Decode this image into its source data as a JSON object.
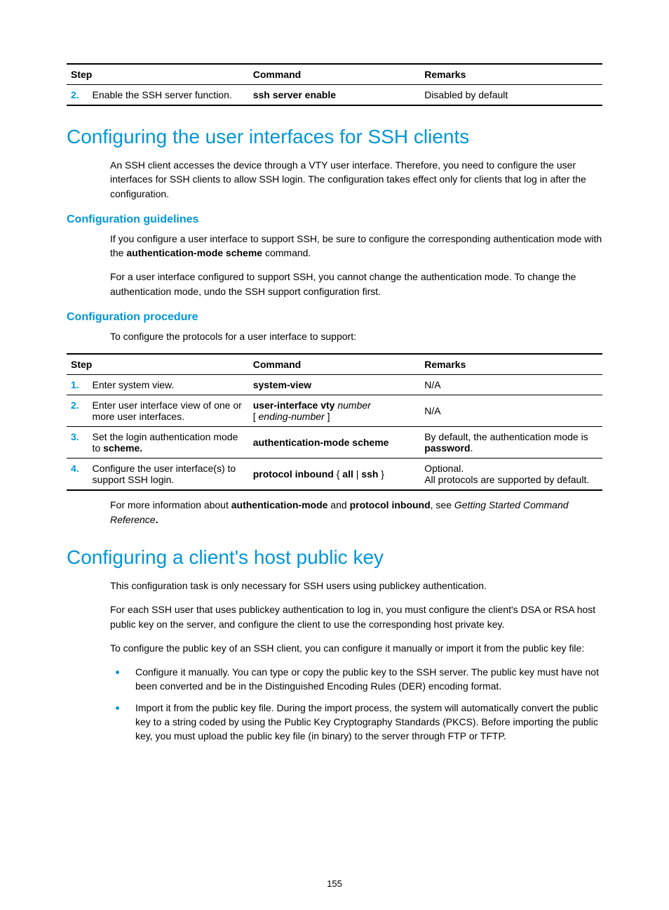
{
  "colors": {
    "accent": "#0096d6",
    "text": "#000000",
    "border": "#000000",
    "background": "#ffffff"
  },
  "typography": {
    "h2_fontsize": 28,
    "h3_fontsize": 16,
    "body_fontsize": 14,
    "table_fontsize": 14
  },
  "table1": {
    "columns": [
      "Step",
      "Command",
      "Remarks"
    ],
    "rows": [
      {
        "num": "2.",
        "step_desc": "Enable the SSH server function.",
        "command_bold": "ssh server enable",
        "remarks": "Disabled by default"
      }
    ]
  },
  "section1": {
    "title": "Configuring the user interfaces for SSH clients",
    "intro": "An SSH client accesses the device through a VTY user interface. Therefore, you need to configure the user interfaces for SSH clients to allow SSH login. The configuration takes effect only for clients that log in after the configuration.",
    "sub1": "Configuration guidelines",
    "guideline1_a": "If you configure a user interface to support SSH, be sure to configure the corresponding authentication mode with the ",
    "guideline1_bold": "authentication-mode scheme",
    "guideline1_b": " command.",
    "guideline2": "For a user interface configured to support SSH, you cannot change the authentication mode. To change the authentication mode, undo the SSH support configuration first.",
    "sub2": "Configuration procedure",
    "proc_intro": "To configure the protocols for a user interface to support:"
  },
  "table2": {
    "columns": [
      "Step",
      "Command",
      "Remarks"
    ],
    "rows": [
      {
        "num": "1.",
        "step_desc": "Enter system view.",
        "cmd_parts": [
          {
            "t": "system-view",
            "b": true
          }
        ],
        "remarks_parts": [
          {
            "t": "N/A"
          }
        ]
      },
      {
        "num": "2.",
        "step_desc": "Enter user interface view of one or more user interfaces.",
        "cmd_parts": [
          {
            "t": "user-interface vty",
            "b": true
          },
          {
            "t": " "
          },
          {
            "t": "number",
            "i": true
          },
          {
            "br": true
          },
          {
            "t": "[ "
          },
          {
            "t": "ending-number",
            "i": true
          },
          {
            "t": " ]"
          }
        ],
        "remarks_parts": [
          {
            "t": "N/A"
          }
        ]
      },
      {
        "num": "3.",
        "step_parts": [
          {
            "t": "Set the login authentication mode to "
          },
          {
            "t": "scheme.",
            "b": true
          }
        ],
        "cmd_parts": [
          {
            "t": "authentication-mode scheme",
            "b": true
          }
        ],
        "remarks_parts": [
          {
            "t": "By default, the authentication mode is "
          },
          {
            "t": "password",
            "b": true
          },
          {
            "t": "."
          }
        ]
      },
      {
        "num": "4.",
        "step_desc": "Configure the user interface(s) to support SSH login.",
        "cmd_parts": [
          {
            "t": "protocol inbound",
            "b": true
          },
          {
            "t": " { "
          },
          {
            "t": "all",
            "b": true
          },
          {
            "t": " | "
          },
          {
            "t": "ssh",
            "b": true
          },
          {
            "t": " }"
          }
        ],
        "remarks_parts": [
          {
            "t": "Optional."
          },
          {
            "br": true
          },
          {
            "t": "All protocols are supported by default."
          }
        ]
      }
    ]
  },
  "footer_note": {
    "a": "For more information about ",
    "b1": "authentication-mode",
    "mid": " and ",
    "b2": "protocol inbound",
    "c": ", see ",
    "i": "Getting Started Command Reference",
    "end": "."
  },
  "section2": {
    "title": "Configuring a client's host public key",
    "p1": "This configuration task is only necessary for SSH users using publickey authentication.",
    "p2": "For each SSH user that uses publickey authentication to log in, you must configure the client's DSA or RSA host public key on the server, and configure the client to use the corresponding host private key.",
    "p3": "To configure the public key of an SSH client, you can configure it manually or import it from the public key file:",
    "bullets": [
      "Configure it manually. You can type or copy the public key to the SSH server. The public key must have not been converted and be in the Distinguished Encoding Rules (DER) encoding format.",
      "Import it from the public key file. During the import process, the system will automatically convert the public key to a string coded by using the Public Key Cryptography Standards (PKCS). Before importing the public key, you must upload the public key file (in binary) to the server through FTP or TFTP."
    ]
  },
  "page_number": "155"
}
